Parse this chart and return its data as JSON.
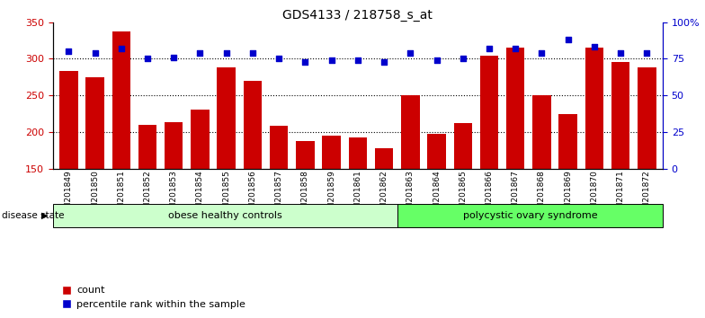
{
  "title": "GDS4133 / 218758_s_at",
  "samples": [
    "GSM201849",
    "GSM201850",
    "GSM201851",
    "GSM201852",
    "GSM201853",
    "GSM201854",
    "GSM201855",
    "GSM201856",
    "GSM201857",
    "GSM201858",
    "GSM201859",
    "GSM201861",
    "GSM201862",
    "GSM201863",
    "GSM201864",
    "GSM201865",
    "GSM201866",
    "GSM201867",
    "GSM201868",
    "GSM201869",
    "GSM201870",
    "GSM201871",
    "GSM201872"
  ],
  "counts": [
    283,
    275,
    338,
    210,
    214,
    230,
    288,
    270,
    208,
    188,
    195,
    193,
    178,
    250,
    197,
    212,
    304,
    315,
    250,
    224,
    315,
    296,
    288
  ],
  "percentiles": [
    80,
    79,
    82,
    75,
    76,
    79,
    79,
    79,
    75,
    73,
    74,
    74,
    73,
    79,
    74,
    75,
    82,
    82,
    79,
    88,
    83,
    79,
    79
  ],
  "group1_label": "obese healthy controls",
  "group2_label": "polycystic ovary syndrome",
  "group1_count": 13,
  "group2_count": 10,
  "bar_color": "#cc0000",
  "dot_color": "#0000cc",
  "ylim_left": [
    150,
    350
  ],
  "ylim_right": [
    0,
    100
  ],
  "yticks_left": [
    150,
    200,
    250,
    300,
    350
  ],
  "yticks_right": [
    0,
    25,
    50,
    75,
    100
  ],
  "yticklabels_right": [
    "0",
    "25",
    "50",
    "75",
    "100%"
  ],
  "grid_values": [
    200,
    250,
    300
  ],
  "group1_color": "#ccffcc",
  "group2_color": "#66ff66",
  "disease_state_label": "disease state",
  "legend_count_label": "count",
  "legend_pct_label": "percentile rank within the sample",
  "bar_bottom": 150
}
